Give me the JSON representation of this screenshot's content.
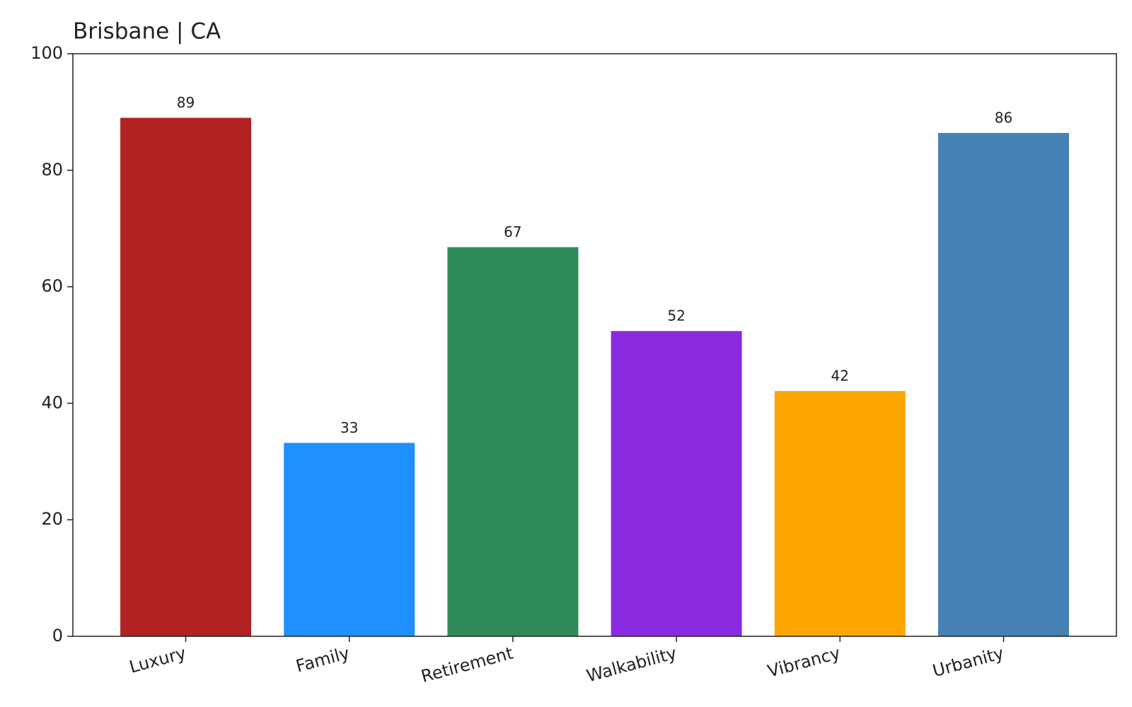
{
  "chart_data": {
    "type": "bar",
    "title": "Brisbane | CA",
    "categories": [
      "Luxury",
      "Family",
      "Retirement",
      "Walkability",
      "Vibrancy",
      "Urbanity"
    ],
    "values": [
      89,
      33.2,
      66.8,
      52.4,
      42.1,
      86.4
    ],
    "value_labels": [
      "89",
      "33",
      "67",
      "52",
      "42",
      "86"
    ],
    "colors": [
      "#b22222",
      "#1e90ff",
      "#2e8b57",
      "#8a2be2",
      "#ffa500",
      "#4682b4"
    ],
    "ylim": [
      0,
      100
    ],
    "yticks": [
      0,
      20,
      40,
      60,
      80,
      100
    ],
    "grid": false
  }
}
